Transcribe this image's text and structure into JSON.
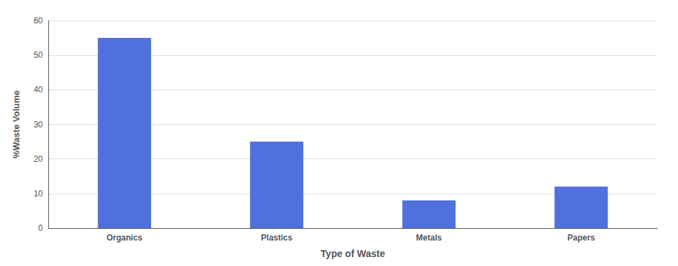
{
  "chart_data": {
    "type": "bar",
    "categories": [
      "Organics",
      "Plastics",
      "Metals",
      "Papers"
    ],
    "values": [
      55,
      25,
      8,
      12
    ],
    "xlabel": "Type of Waste",
    "ylabel": "%Waste Volume",
    "ylim": [
      0,
      60
    ],
    "yticks": [
      0,
      10,
      20,
      30,
      40,
      50,
      60
    ],
    "grid": true
  }
}
